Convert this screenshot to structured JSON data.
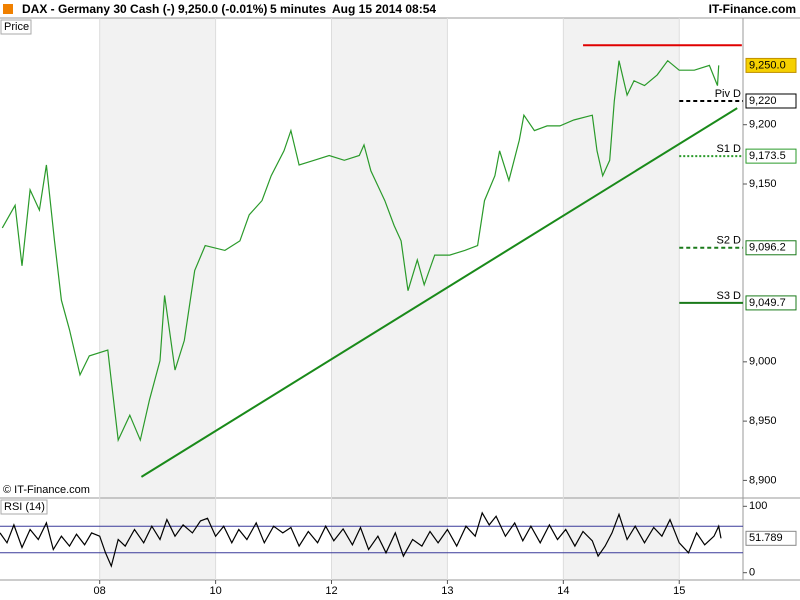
{
  "header": {
    "instrument": "DAX - Germany 30 Cash (-)",
    "quote": "9,250.0 (-0.01%)",
    "interval": "5 minutes",
    "timestamp": "Aug 15 2014 08:54",
    "brand": "IT-Finance.com"
  },
  "chart_data": [
    {
      "type": "line",
      "title": "Price",
      "footer": "© IT-Finance.com",
      "color": "#2a9a2a",
      "x": [
        0.16,
        0.27,
        0.33,
        0.4,
        0.48,
        0.54,
        0.61,
        0.67,
        0.74,
        0.83,
        0.91,
        1.07,
        1.1,
        1.16,
        1.26,
        1.35,
        1.43,
        1.52,
        1.56,
        1.65,
        1.73,
        1.82,
        1.91,
        2.08,
        2.21,
        2.29,
        2.4,
        2.48,
        2.59,
        2.65,
        2.72,
        2.85,
        2.98,
        3.11,
        3.24,
        3.28,
        3.34,
        3.46,
        3.54,
        3.6,
        3.66,
        3.74,
        3.8,
        3.89,
        4.02,
        4.15,
        4.26,
        4.32,
        4.41,
        4.45,
        4.53,
        4.62,
        4.66,
        4.75,
        4.86,
        4.97,
        5.09,
        5.25,
        5.29,
        5.34,
        5.4,
        5.44,
        5.48,
        5.55,
        5.61,
        5.7,
        5.81,
        5.9,
        6.0,
        6.13,
        6.26,
        6.33,
        6.34
      ],
      "values": [
        9113,
        9132,
        9081,
        9145,
        9128,
        9166,
        9102,
        9052,
        9027,
        8989,
        9005,
        9010,
        8984,
        8934,
        8955,
        8934,
        8968,
        9001,
        9056,
        8993,
        9018,
        9077,
        9098,
        9094,
        9102,
        9124,
        9136,
        9157,
        9178,
        9195,
        9166,
        9170,
        9174,
        9170,
        9174,
        9183,
        9161,
        9136,
        9115,
        9102,
        9060,
        9086,
        9065,
        9090,
        9090,
        9094,
        9098,
        9136,
        9157,
        9178,
        9153,
        9187,
        9208,
        9195,
        9199,
        9199,
        9204,
        9208,
        9178,
        9157,
        9170,
        9220,
        9254,
        9225,
        9237,
        9233,
        9242,
        9254,
        9246,
        9246,
        9250,
        9233,
        9250
      ],
      "xlim": [
        0.14,
        6.55
      ],
      "ylim": [
        8886,
        9290
      ],
      "yticks": [
        {
          "value": 8900,
          "label": "8,900"
        },
        {
          "value": 8950,
          "label": "8,950"
        },
        {
          "value": 9000,
          "label": "9,000"
        },
        {
          "value": 9150,
          "label": "9,150"
        },
        {
          "value": 9200,
          "label": "9,200"
        }
      ],
      "current": {
        "value": 9250,
        "label": "9,250.0"
      },
      "levels": [
        {
          "name": "Piv D",
          "value": 9220,
          "label": "9,220",
          "color": "#000000",
          "style": "dashed"
        },
        {
          "name": "S1 D",
          "value": 9173.5,
          "label": "9,173.5",
          "color": "#2a9a2a",
          "style": "dotted"
        },
        {
          "name": "S2 D",
          "value": 9096.2,
          "label": "9,096.2",
          "color": "#1a7a1a",
          "style": "dashed"
        },
        {
          "name": "S3 D",
          "value": 9049.7,
          "label": "9,049.7",
          "color": "#1a7a1a",
          "style": "solid"
        }
      ],
      "trendlines": [
        {
          "x": [
            1.36,
            6.5
          ],
          "values": [
            8903,
            9214
          ],
          "color": "#1a8a1a"
        },
        {
          "x": [
            5.17,
            6.54
          ],
          "values": [
            9267,
            9267
          ],
          "color": "#e00000"
        }
      ]
    },
    {
      "type": "line",
      "title": "RSI (14)",
      "color": "#000000",
      "x": [
        0.14,
        0.2,
        0.26,
        0.33,
        0.4,
        0.47,
        0.54,
        0.6,
        0.67,
        0.74,
        0.8,
        0.87,
        0.93,
        1.0,
        1.05,
        1.1,
        1.16,
        1.22,
        1.3,
        1.38,
        1.45,
        1.52,
        1.58,
        1.65,
        1.72,
        1.8,
        1.87,
        1.93,
        2.0,
        2.07,
        2.14,
        2.2,
        2.27,
        2.35,
        2.42,
        2.5,
        2.58,
        2.65,
        2.72,
        2.8,
        2.88,
        2.95,
        3.02,
        3.1,
        3.18,
        3.25,
        3.32,
        3.4,
        3.47,
        3.55,
        3.62,
        3.7,
        3.78,
        3.85,
        3.92,
        4.0,
        4.08,
        4.16,
        4.24,
        4.3,
        4.36,
        4.42,
        4.5,
        4.58,
        4.65,
        4.72,
        4.8,
        4.88,
        4.95,
        5.02,
        5.1,
        5.17,
        5.25,
        5.3,
        5.36,
        5.42,
        5.48,
        5.55,
        5.62,
        5.7,
        5.78,
        5.85,
        5.92,
        6.0,
        6.08,
        6.15,
        6.22,
        6.3,
        6.34,
        6.36
      ],
      "values": [
        60,
        45,
        72,
        38,
        65,
        50,
        75,
        35,
        55,
        40,
        58,
        42,
        60,
        55,
        30,
        10,
        50,
        40,
        65,
        45,
        70,
        50,
        80,
        55,
        72,
        60,
        78,
        82,
        55,
        70,
        45,
        65,
        50,
        75,
        45,
        70,
        60,
        68,
        40,
        62,
        45,
        70,
        48,
        66,
        42,
        68,
        35,
        55,
        30,
        60,
        25,
        50,
        40,
        62,
        45,
        65,
        40,
        70,
        55,
        90,
        72,
        85,
        55,
        75,
        48,
        70,
        45,
        72,
        50,
        65,
        40,
        62,
        48,
        25,
        40,
        60,
        88,
        50,
        70,
        45,
        68,
        55,
        80,
        45,
        30,
        60,
        42,
        55,
        70,
        51.789
      ],
      "xlim": [
        0.14,
        6.55
      ],
      "ylim": [
        -11,
        111
      ],
      "yticks": [
        100,
        0
      ],
      "bands": [
        70,
        30
      ],
      "band_color": "#3a3a9a",
      "current": {
        "value": 51.789,
        "label": "51.789"
      },
      "xticks": [
        {
          "value": 1,
          "label": "08"
        },
        {
          "value": 2,
          "label": "10"
        },
        {
          "value": 3,
          "label": "12"
        },
        {
          "value": 4,
          "label": "13"
        },
        {
          "value": 5,
          "label": "14"
        },
        {
          "value": 6,
          "label": "15"
        }
      ]
    }
  ]
}
